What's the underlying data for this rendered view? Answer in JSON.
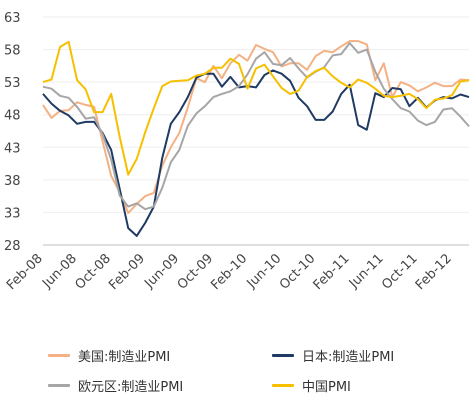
{
  "chart_data": {
    "type": "line",
    "x": [
      "2008-02",
      "2008-03",
      "2008-04",
      "2008-05",
      "2008-06",
      "2008-07",
      "2008-08",
      "2008-09",
      "2008-10",
      "2008-11",
      "2008-12",
      "2009-01",
      "2009-02",
      "2009-03",
      "2009-04",
      "2009-05",
      "2009-06",
      "2009-07",
      "2009-08",
      "2009-09",
      "2009-10",
      "2009-11",
      "2009-12",
      "2010-01",
      "2010-02",
      "2010-03",
      "2010-04",
      "2010-05",
      "2010-06",
      "2010-07",
      "2010-08",
      "2010-09",
      "2010-10",
      "2010-11",
      "2010-12",
      "2011-01",
      "2011-02",
      "2011-03",
      "2011-04",
      "2011-05",
      "2011-06",
      "2011-07",
      "2011-08",
      "2011-09",
      "2011-10",
      "2011-11",
      "2011-12",
      "2012-01",
      "2012-02",
      "2012-03",
      "2012-04"
    ],
    "x_tick_labels": [
      "Feb-08",
      "Jun-08",
      "Oct-08",
      "Feb-09",
      "Jun-09",
      "Oct-09",
      "Feb-10",
      "Jun-10",
      "Oct-10",
      "Feb-11",
      "Jun-11",
      "Oct-11",
      "Feb-12"
    ],
    "ylim": [
      28,
      63
    ],
    "yticks": [
      28,
      33,
      38,
      43,
      48,
      53,
      58,
      63
    ],
    "series": [
      {
        "name": "美国:制造业PMI",
        "color": "#f4b183",
        "values": [
          49.5,
          47.5,
          48.6,
          48.7,
          49.9,
          49.5,
          49.2,
          43.9,
          38.6,
          36.1,
          32.9,
          34.3,
          35.5,
          36.0,
          40.2,
          43.0,
          45.2,
          49.1,
          53.6,
          53.0,
          55.5,
          53.6,
          55.9,
          57.2,
          56.3,
          58.7,
          58.1,
          57.6,
          55.4,
          55.9,
          55.9,
          54.9,
          57.0,
          57.8,
          57.6,
          58.5,
          59.3,
          59.3,
          58.8,
          53.3,
          55.9,
          50.7,
          53.0,
          52.5,
          51.6,
          52.2,
          52.9,
          52.4,
          52.4,
          53.4,
          53.3
        ]
      },
      {
        "name": "日本:制造业PMI",
        "color": "#1f3a63",
        "values": [
          51.2,
          49.7,
          48.6,
          47.9,
          46.6,
          46.9,
          46.9,
          45.2,
          42.6,
          36.6,
          30.6,
          29.4,
          31.4,
          33.9,
          41.4,
          46.6,
          48.4,
          50.7,
          53.7,
          54.3,
          54.3,
          52.3,
          53.8,
          52.2,
          52.4,
          52.2,
          54.1,
          54.8,
          54.3,
          53.2,
          50.6,
          49.3,
          47.2,
          47.2,
          48.5,
          51.2,
          52.6,
          46.4,
          45.7,
          51.3,
          50.7,
          52.1,
          51.9,
          49.3,
          50.6,
          49.1,
          50.2,
          50.7,
          50.5,
          51.1,
          50.7
        ]
      },
      {
        "name": "欧元区:制造业PMI",
        "color": "#a6a6a6",
        "values": [
          52.3,
          52.0,
          50.9,
          50.6,
          49.2,
          47.4,
          47.6,
          45.0,
          41.1,
          35.6,
          33.9,
          34.4,
          33.5,
          33.9,
          36.8,
          40.7,
          42.6,
          46.3,
          48.2,
          49.3,
          50.7,
          51.2,
          51.6,
          52.4,
          54.2,
          56.6,
          57.6,
          55.8,
          55.6,
          56.7,
          55.1,
          53.7,
          54.6,
          55.3,
          57.1,
          57.3,
          59.0,
          57.5,
          58.0,
          54.6,
          52.0,
          50.4,
          49.0,
          48.5,
          47.1,
          46.4,
          46.9,
          48.8,
          49.0,
          47.7,
          46.2
        ]
      },
      {
        "name": "中国PMI",
        "color": "#f6c000",
        "values": [
          53.0,
          53.4,
          58.4,
          59.2,
          53.3,
          51.9,
          48.4,
          48.4,
          51.2,
          44.6,
          38.8,
          41.2,
          45.3,
          49.0,
          52.4,
          53.1,
          53.2,
          53.3,
          54.0,
          54.3,
          55.2,
          55.2,
          56.6,
          55.8,
          52.0,
          55.1,
          55.7,
          53.9,
          52.1,
          51.2,
          51.7,
          53.8,
          54.7,
          55.2,
          53.9,
          52.9,
          52.2,
          53.4,
          52.9,
          52.0,
          50.9,
          50.7,
          50.9,
          51.2,
          50.4,
          49.0,
          50.3,
          50.5,
          51.0,
          53.1,
          53.3
        ]
      }
    ]
  }
}
